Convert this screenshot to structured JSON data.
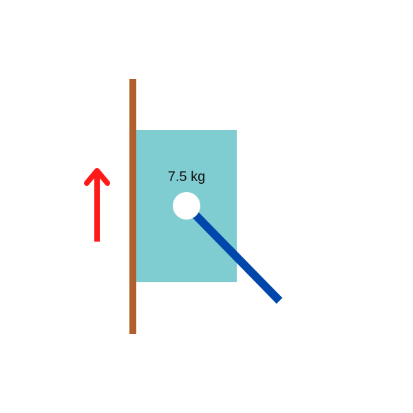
{
  "diagram": {
    "block": {
      "mass_label": "7.5 kg",
      "color": "#80CDD1"
    },
    "wall": {
      "color": "#B0602C"
    },
    "rod": {
      "color": "#0047AB"
    },
    "pivot": {
      "color": "#FFFFFF"
    },
    "arrow": {
      "direction": "up",
      "color": "#FF1A1A"
    },
    "text_color": "#111111"
  }
}
